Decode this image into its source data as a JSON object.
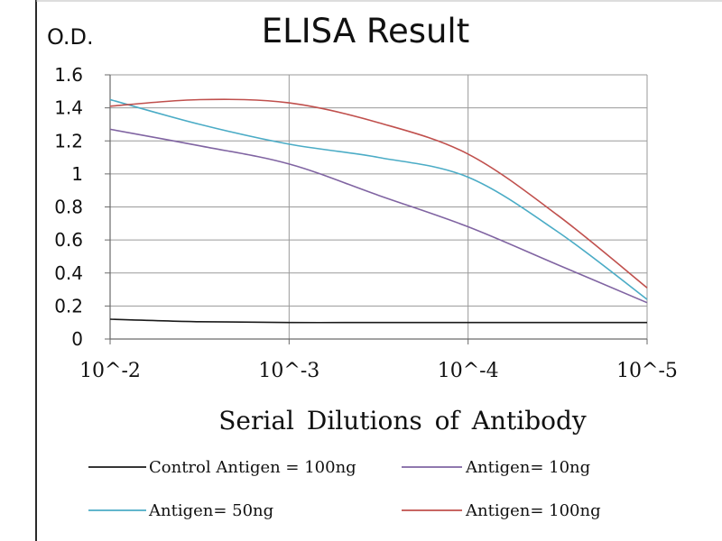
{
  "chart_data": {
    "type": "line",
    "title": "ELISA Result",
    "ylabel": "O.D.",
    "xlabel": "Serial Dilutions  of Antibody",
    "x_tick_labels": [
      "10^-2",
      "10^-3",
      "10^-4",
      "10^-5"
    ],
    "x_scale": "log",
    "x_direction": "decreasing-dilution",
    "x_points": [
      0.01,
      0.00316,
      0.001,
      0.000316,
      0.0001,
      3.16e-05,
      1e-05
    ],
    "ylim": [
      0,
      1.6
    ],
    "y_tick_labels": [
      "0",
      "0.2",
      "0.4",
      "0.6",
      "0.8",
      "1",
      "1.2",
      "1.4",
      "1.6"
    ],
    "y_ticks": [
      0,
      0.2,
      0.4,
      0.6,
      0.8,
      1.0,
      1.2,
      1.4,
      1.6
    ],
    "grid": "vertical-and-horizontal",
    "legend_position": "bottom",
    "series": [
      {
        "name": "Control Antigen = 100ng",
        "color": "#1a1a1a",
        "values": [
          0.12,
          0.105,
          0.1,
          0.1,
          0.1,
          0.1,
          0.1
        ]
      },
      {
        "name": "Antigen= 10ng",
        "color": "#8064a2",
        "values": [
          1.27,
          1.17,
          1.06,
          0.87,
          0.68,
          0.45,
          0.22
        ]
      },
      {
        "name": "Antigen= 50ng",
        "color": "#4bacc6",
        "values": [
          1.45,
          1.3,
          1.18,
          1.1,
          0.98,
          0.65,
          0.24
        ]
      },
      {
        "name": "Antigen= 100ng",
        "color": "#c0504d",
        "values": [
          1.41,
          1.45,
          1.43,
          1.31,
          1.12,
          0.75,
          0.31
        ]
      }
    ]
  }
}
